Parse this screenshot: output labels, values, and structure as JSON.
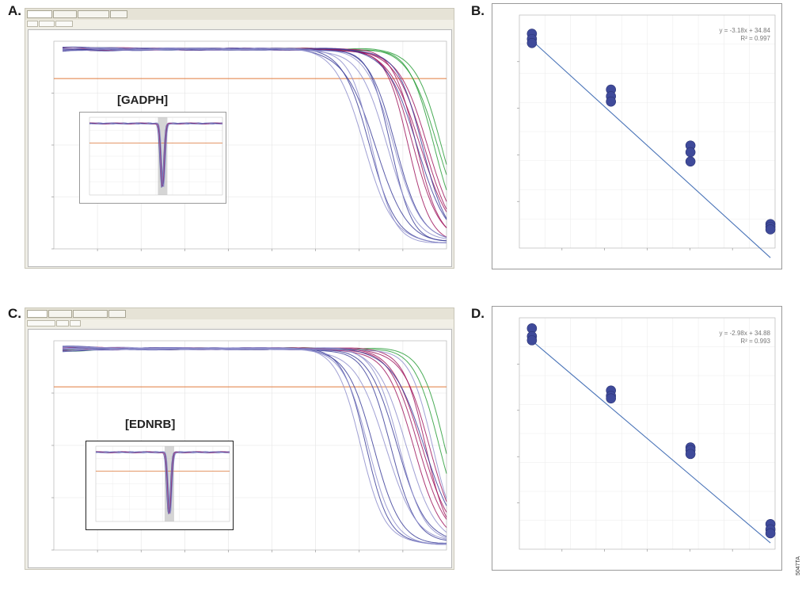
{
  "panels": {
    "a": {
      "letter": "A.",
      "gene": "[GADPH]"
    },
    "b": {
      "letter": "B."
    },
    "c": {
      "letter": "C.",
      "gene": "[EDNRB]"
    },
    "d": {
      "letter": "D."
    }
  },
  "figure_id": "5047TA",
  "colors": {
    "purple": "#3d3f9a",
    "lavender": "#8f8fcc",
    "magenta": "#a0185e",
    "green": "#2a9d3a",
    "threshold": "#e07a3c",
    "point": "#3f4a9a",
    "fit": "#4a74b8"
  },
  "chart_data": [
    {
      "type": "line",
      "panel": "A",
      "description_shown": "amplification plot with inset",
      "threshold_level": 0.82,
      "x_range": [
        0,
        45
      ],
      "series_groups": [
        {
          "color": "green",
          "midpoints": [
            43.6,
            44.0,
            44.4
          ]
        },
        {
          "color": "magenta",
          "midpoints": [
            40.6,
            41.2,
            41.6,
            42.0,
            42.4,
            42.8
          ]
        },
        {
          "color": "purple",
          "midpoints": [
            36.2,
            36.8,
            38.6,
            39.2,
            41.6,
            42.2
          ]
        },
        {
          "color": "lavender",
          "midpoints": [
            35.6,
            36.4,
            38.2,
            39.0
          ]
        }
      ]
    },
    {
      "type": "scatter",
      "panel": "B",
      "annotation": [
        "y = -3.18x + 34.84",
        "R² = 0.997"
      ],
      "x": [
        -0.33,
        -0.33,
        -0.33,
        1.37,
        1.37,
        1.37,
        3.08,
        3.08,
        3.08,
        4.8,
        4.8,
        4.8
      ],
      "y": [
        38.6,
        38.2,
        37.9,
        34.4,
        33.9,
        33.5,
        30.2,
        29.7,
        29.0,
        24.3,
        24.1,
        23.9
      ],
      "fit": {
        "slope": -3.18,
        "intercept": 34.84
      }
    },
    {
      "type": "line",
      "panel": "C",
      "description_shown": "amplification plot with inset",
      "threshold_level": 0.78,
      "x_range": [
        0,
        45
      ],
      "series_groups": [
        {
          "color": "green",
          "midpoints": [
            44.2,
            44.8
          ]
        },
        {
          "color": "magenta",
          "midpoints": [
            41.2,
            41.8,
            42.2,
            42.6,
            43.0
          ]
        },
        {
          "color": "purple",
          "midpoints": [
            35.8,
            36.6,
            38.6,
            39.4,
            42.4
          ]
        },
        {
          "color": "lavender",
          "midpoints": [
            35.2,
            36.0,
            38.0,
            39.6,
            40.4,
            43.4
          ]
        }
      ]
    },
    {
      "type": "scatter",
      "panel": "D",
      "annotation": [
        "y = -2.98x + 34.88",
        "R² = 0.993"
      ],
      "x": [
        -0.33,
        -0.33,
        -0.33,
        1.37,
        1.37,
        1.37,
        3.08,
        3.08,
        3.08,
        4.8,
        4.8,
        4.8
      ],
      "y": [
        39.2,
        38.6,
        38.3,
        34.5,
        34.1,
        33.9,
        30.2,
        30.0,
        29.7,
        24.4,
        24.0,
        23.7
      ],
      "fit": {
        "slope": -2.98,
        "intercept": 34.88
      }
    }
  ]
}
